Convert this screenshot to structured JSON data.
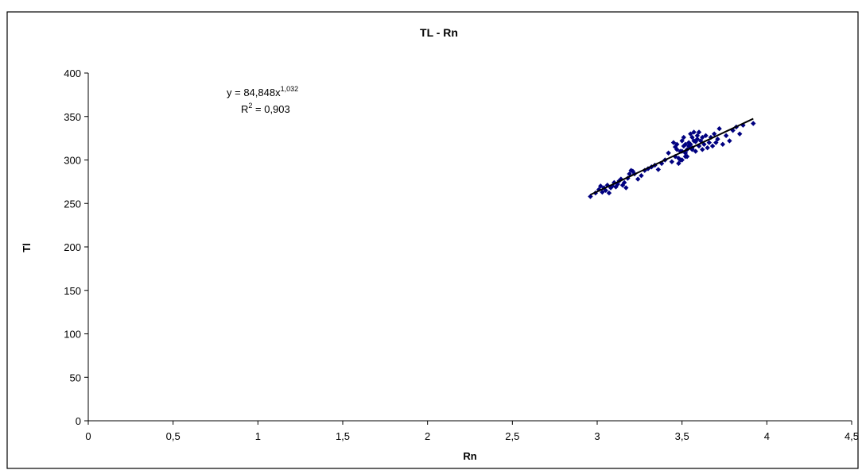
{
  "chart_data": {
    "type": "scatter",
    "title": "TL - Rn",
    "xlabel": "Rn",
    "ylabel": "Tl",
    "xlim": [
      0,
      4.5
    ],
    "ylim": [
      0,
      400
    ],
    "x_ticks": [
      "0",
      "0,5",
      "1",
      "1,5",
      "2",
      "2,5",
      "3",
      "3,5",
      "4",
      "4,5"
    ],
    "y_ticks": [
      "0",
      "50",
      "100",
      "150",
      "200",
      "250",
      "300",
      "350",
      "400"
    ],
    "grid": false,
    "legend": "none",
    "marker_color": "#000080",
    "trendline": {
      "type": "power",
      "coefficient": 84.848,
      "exponent": 1.032,
      "x_range": [
        2.96,
        3.92
      ],
      "equation_prefix": "y = 84,848x",
      "equation_exponent": "1,032",
      "r2_prefix": "R",
      "r2_exponent": "2",
      "r2_suffix": " = 0,903"
    },
    "series": [
      {
        "x": [
          2.96,
          2.99,
          3.01,
          3.02,
          3.03,
          3.04,
          3.05,
          3.06,
          3.07,
          3.08,
          3.09,
          3.1,
          3.11,
          3.12,
          3.13,
          3.14,
          3.15,
          3.16,
          3.17,
          3.18,
          3.19,
          3.2,
          3.21,
          3.22,
          3.24,
          3.26,
          3.28,
          3.3,
          3.32,
          3.34,
          3.36,
          3.38,
          3.4,
          3.42,
          3.44,
          3.45,
          3.46,
          3.47,
          3.47,
          3.48,
          3.49,
          3.5,
          3.5,
          3.51,
          3.52,
          3.52,
          3.53,
          3.54,
          3.54,
          3.55,
          3.56,
          3.56,
          3.57,
          3.58,
          3.58,
          3.59,
          3.6,
          3.6,
          3.61,
          3.62,
          3.62,
          3.63,
          3.64,
          3.65,
          3.66,
          3.67,
          3.68,
          3.69,
          3.7,
          3.71,
          3.72,
          3.74,
          3.76,
          3.78,
          3.8,
          3.82,
          3.84,
          3.86,
          3.92,
          3.5,
          3.49,
          3.51,
          3.53,
          3.55,
          3.57,
          3.59,
          3.48,
          3.46,
          3.52,
          3.56
        ],
        "y": [
          258,
          262,
          266,
          270,
          263,
          268,
          265,
          271,
          262,
          268,
          270,
          274,
          269,
          272,
          276,
          278,
          271,
          274,
          268,
          279,
          284,
          288,
          287,
          284,
          278,
          282,
          288,
          290,
          292,
          294,
          289,
          296,
          300,
          308,
          298,
          320,
          315,
          318,
          312,
          302,
          310,
          300,
          322,
          326,
          304,
          318,
          312,
          320,
          316,
          330,
          326,
          314,
          332,
          321,
          310,
          324,
          332,
          316,
          322,
          312,
          326,
          318,
          328,
          314,
          320,
          326,
          316,
          330,
          320,
          324,
          336,
          318,
          328,
          322,
          334,
          338,
          330,
          340,
          342,
          310,
          300,
          316,
          304,
          318,
          322,
          328,
          296,
          304,
          308,
          312
        ]
      }
    ]
  }
}
